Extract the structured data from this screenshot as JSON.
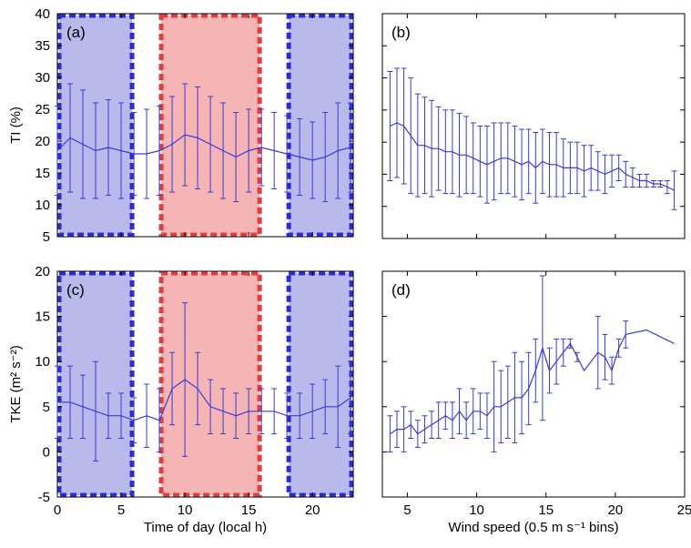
{
  "colors": {
    "series": "#3a3ad6",
    "night_fill": "#b9b9ec",
    "night_border": "#2b2bd9",
    "day_fill": "#f5b5b5",
    "day_border": "#e63b3b",
    "frame": "#000000"
  },
  "chart_data": [
    {
      "panel": "(a)",
      "type": "line",
      "ylabel": "TI (%)",
      "xlabel": "",
      "xlim": [
        0,
        23.2
      ],
      "ylim": [
        5,
        40
      ],
      "xticks": [
        0,
        5,
        10,
        15,
        20
      ],
      "yticks": [
        5,
        10,
        15,
        20,
        25,
        30,
        35,
        40
      ],
      "show_xticklabels": false,
      "shading": [
        {
          "kind": "night",
          "x0": 0,
          "x1": 6
        },
        {
          "kind": "day",
          "x0": 8,
          "x1": 16
        },
        {
          "kind": "night",
          "x0": 18,
          "x1": 23.2
        }
      ],
      "x": [
        0,
        1,
        2,
        3,
        4,
        5,
        6,
        7,
        8,
        9,
        10,
        11,
        12,
        13,
        14,
        15,
        16,
        17,
        18,
        19,
        20,
        21,
        22,
        23
      ],
      "y": [
        18.5,
        20.5,
        19.5,
        18.5,
        19.0,
        18.5,
        18.0,
        18.0,
        18.5,
        19.5,
        21.0,
        20.5,
        19.5,
        18.5,
        17.5,
        18.5,
        19.0,
        18.5,
        18.0,
        17.5,
        17.0,
        17.5,
        18.5,
        19.0
      ],
      "err": [
        7.0,
        8.5,
        8.5,
        7.5,
        7.5,
        7.5,
        6.5,
        7.0,
        7.0,
        7.5,
        8.0,
        8.0,
        7.5,
        7.5,
        7.0,
        6.5,
        6.0,
        6.0,
        6.0,
        6.0,
        6.0,
        7.0,
        7.5,
        7.0
      ]
    },
    {
      "panel": "(b)",
      "type": "line",
      "ylabel": "",
      "xlabel": "",
      "xlim": [
        3.2,
        25
      ],
      "ylim": [
        5,
        40
      ],
      "xticks": [
        5,
        10,
        15,
        20,
        25
      ],
      "yticks": [
        5,
        10,
        15,
        20,
        25,
        30,
        35,
        40
      ],
      "show_xticklabels": false,
      "show_yticklabels": false,
      "x": [
        3.75,
        4.25,
        4.75,
        5.25,
        5.75,
        6.25,
        6.75,
        7.25,
        7.75,
        8.25,
        8.75,
        9.25,
        9.75,
        10.25,
        10.75,
        11.25,
        11.75,
        12.25,
        12.75,
        13.25,
        13.75,
        14.25,
        14.75,
        15.25,
        15.75,
        16.25,
        16.75,
        17.25,
        17.75,
        18.25,
        18.75,
        19.25,
        19.75,
        20.25,
        20.75,
        21.25,
        21.75,
        22.25,
        22.75,
        23.25,
        23.75,
        24.25
      ],
      "y": [
        22.5,
        23.0,
        22.5,
        21.0,
        19.5,
        19.5,
        19.0,
        19.0,
        18.5,
        18.5,
        18.0,
        18.0,
        17.5,
        17.0,
        16.5,
        17.0,
        17.5,
        17.5,
        17.0,
        16.5,
        17.0,
        16.0,
        17.0,
        16.5,
        16.5,
        16.0,
        16.0,
        16.0,
        15.5,
        16.0,
        15.5,
        15.0,
        15.5,
        16.0,
        15.0,
        14.5,
        14.0,
        14.0,
        13.5,
        13.5,
        13.0,
        12.5
      ],
      "err": [
        8.5,
        8.5,
        9.0,
        9.0,
        8.0,
        7.5,
        7.5,
        6.5,
        6.5,
        6.5,
        6.5,
        6.0,
        5.5,
        5.5,
        6.0,
        6.0,
        5.5,
        5.5,
        5.5,
        5.5,
        5.0,
        5.5,
        5.0,
        5.0,
        5.0,
        4.5,
        4.0,
        4.0,
        4.0,
        3.5,
        3.0,
        3.0,
        2.5,
        2.0,
        2.0,
        1.5,
        1.0,
        1.0,
        0.5,
        0.5,
        1.0,
        3.0
      ]
    },
    {
      "panel": "(c)",
      "type": "line",
      "ylabel": "TKE (m² s⁻²)",
      "xlabel": "Time of day (local h)",
      "xlim": [
        0,
        23.2
      ],
      "ylim": [
        -5,
        20
      ],
      "xticks": [
        0,
        5,
        10,
        15,
        20
      ],
      "yticks": [
        -5,
        0,
        5,
        10,
        15,
        20
      ],
      "show_xticklabels": true,
      "shading": [
        {
          "kind": "night",
          "x0": 0,
          "x1": 6
        },
        {
          "kind": "day",
          "x0": 8,
          "x1": 16
        },
        {
          "kind": "night",
          "x0": 18,
          "x1": 23.2
        }
      ],
      "x": [
        0,
        1,
        2,
        3,
        4,
        5,
        6,
        7,
        8,
        9,
        10,
        11,
        12,
        13,
        14,
        15,
        16,
        17,
        18,
        19,
        20,
        21,
        22,
        23
      ],
      "y": [
        5.5,
        5.5,
        5.0,
        4.5,
        4.0,
        4.0,
        3.5,
        4.0,
        3.5,
        7.0,
        8.0,
        7.0,
        5.0,
        4.5,
        4.0,
        4.5,
        4.5,
        4.5,
        4.0,
        4.0,
        4.5,
        5.0,
        5.0,
        6.0
      ],
      "err": [
        4.0,
        4.0,
        3.5,
        5.5,
        2.5,
        2.5,
        2.5,
        3.5,
        3.5,
        4.0,
        8.5,
        4.0,
        3.0,
        2.5,
        2.5,
        2.5,
        2.5,
        2.5,
        2.5,
        2.5,
        3.0,
        3.0,
        4.5,
        4.0
      ]
    },
    {
      "panel": "(d)",
      "type": "line",
      "ylabel": "",
      "xlabel": "Wind speed (0.5 m s⁻¹ bins)",
      "xlim": [
        3.2,
        25
      ],
      "ylim": [
        -5,
        20
      ],
      "xticks": [
        5,
        10,
        15,
        20,
        25
      ],
      "yticks": [
        -5,
        0,
        5,
        10,
        15,
        20
      ],
      "show_xticklabels": true,
      "show_yticklabels": false,
      "x": [
        3.75,
        4.25,
        4.75,
        5.25,
        5.75,
        6.25,
        6.75,
        7.25,
        7.75,
        8.25,
        8.75,
        9.25,
        9.75,
        10.25,
        10.75,
        11.25,
        11.75,
        12.25,
        12.75,
        13.25,
        13.75,
        14.25,
        14.75,
        15.25,
        15.75,
        16.25,
        16.75,
        17.25,
        17.75,
        18.75,
        19.25,
        19.75,
        20.25,
        20.75,
        22.25,
        24.25
      ],
      "y": [
        2.0,
        2.5,
        2.5,
        3.0,
        2.0,
        2.5,
        3.0,
        3.5,
        4.0,
        3.5,
        4.5,
        3.5,
        4.5,
        4.5,
        4.0,
        5.0,
        5.0,
        5.5,
        6.0,
        6.0,
        7.0,
        9.0,
        11.5,
        9.0,
        10.0,
        11.0,
        12.0,
        10.5,
        9.0,
        11.0,
        10.5,
        9.0,
        11.5,
        13.0,
        13.5,
        12.0
      ],
      "err": [
        2.0,
        2.0,
        2.5,
        1.5,
        1.5,
        1.5,
        1.5,
        2.0,
        1.5,
        2.0,
        2.5,
        2.0,
        2.5,
        2.0,
        2.5,
        5.0,
        4.0,
        4.0,
        5.0,
        4.0,
        4.0,
        3.5,
        8.0,
        2.5,
        2.5,
        1.5,
        0.5,
        0.5,
        0,
        4.0,
        2.5,
        1.5,
        1.0,
        1.5,
        0,
        0
      ]
    }
  ]
}
